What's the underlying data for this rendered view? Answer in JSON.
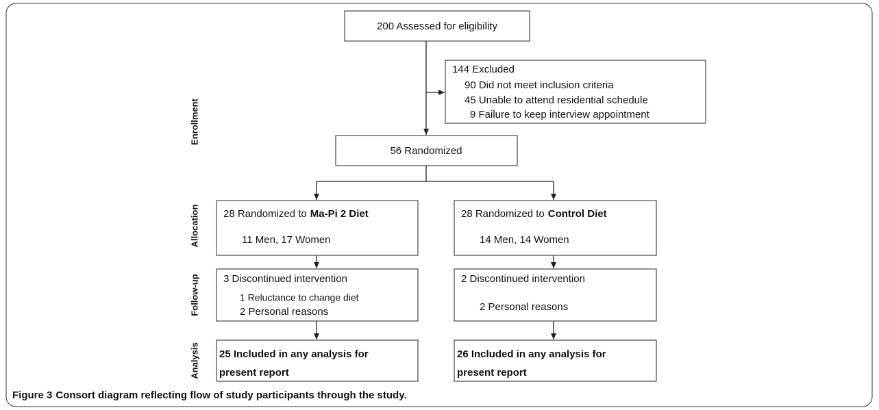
{
  "stages": [
    "Enrollment",
    "Allocation",
    "Follow-up",
    "Analysis"
  ],
  "assessed": "200 Assessed for eligibility",
  "excluded": {
    "title": "144 Excluded",
    "reasons": [
      "90 Did not meet inclusion criteria",
      "45 Unable to attend residential schedule",
      "9 Failure to keep interview appointment"
    ]
  },
  "randomized": "56 Randomized",
  "arms": [
    {
      "allocation_prefix": "28 Randomized to",
      "arm": "Ma-Pi 2 Diet",
      "allocation_detail": "11 Men, 17 Women",
      "followup_title": "3 Discontinued intervention",
      "followup_reasons": [
        "1 Reluctance to change diet",
        "2 Personal reasons"
      ],
      "analysis": [
        "25 Included in any analysis for",
        "present report"
      ]
    },
    {
      "allocation_prefix": "28 Randomized to",
      "arm": "Control Diet",
      "allocation_detail": "14 Men, 14 Women",
      "followup_title": "2 Discontinued intervention",
      "followup_reasons": [
        "2 Personal reasons"
      ],
      "analysis": [
        "26 Included in any analysis for",
        "present report"
      ]
    }
  ],
  "caption": {
    "label": "Figure 3",
    "text": "Consort diagram reflecting flow of study participants through the study."
  }
}
